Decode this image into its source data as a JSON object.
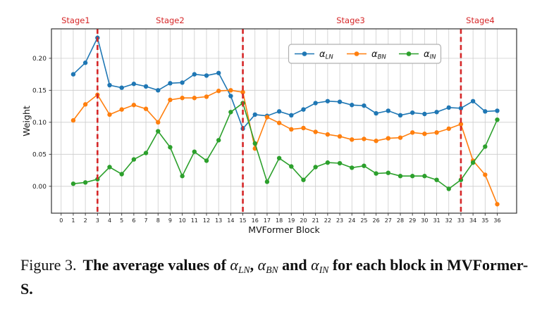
{
  "figure": {
    "caption_segments": [
      {
        "text": "Figure 3.",
        "style": "figlabel"
      },
      {
        "text": "The average values of ",
        "style": "bold"
      },
      {
        "text": "α",
        "style": "math"
      },
      {
        "text": "LN",
        "style": "mathsub"
      },
      {
        "text": ", ",
        "style": "bold"
      },
      {
        "text": "α",
        "style": "math"
      },
      {
        "text": "BN",
        "style": "mathsub"
      },
      {
        "text": " and ",
        "style": "bold"
      },
      {
        "text": "α",
        "style": "math"
      },
      {
        "text": "IN",
        "style": "mathsub"
      },
      {
        "text": " for each block in MVFormer-S.",
        "style": "bold"
      }
    ]
  },
  "chart_data": {
    "type": "line",
    "title": "",
    "xlabel": "MVFormer Block",
    "ylabel": "Weight",
    "grid": true,
    "legend_position": "upper center",
    "xlim": [
      -0.8,
      37.6
    ],
    "ylim": [
      -0.042,
      0.246
    ],
    "x_ticks": [
      0,
      1,
      2,
      3,
      4,
      5,
      6,
      7,
      8,
      9,
      10,
      11,
      12,
      13,
      14,
      15,
      16,
      17,
      18,
      19,
      20,
      21,
      22,
      23,
      24,
      25,
      26,
      27,
      28,
      29,
      30,
      31,
      32,
      33,
      34,
      35,
      36
    ],
    "y_ticks": [
      0.0,
      0.05,
      0.1,
      0.15,
      0.2
    ],
    "y_tick_labels": [
      "0.00",
      "0.05",
      "0.10",
      "0.15",
      "0.20"
    ],
    "x": [
      1,
      2,
      3,
      4,
      5,
      6,
      7,
      8,
      9,
      10,
      11,
      12,
      13,
      14,
      15,
      16,
      17,
      18,
      19,
      20,
      21,
      22,
      23,
      24,
      25,
      26,
      27,
      28,
      29,
      30,
      31,
      32,
      33,
      34,
      35,
      36
    ],
    "series": [
      {
        "name": "α_LN",
        "color": "#1f77b4",
        "values": [
          0.175,
          0.193,
          0.232,
          0.158,
          0.154,
          0.16,
          0.156,
          0.15,
          0.161,
          0.162,
          0.175,
          0.173,
          0.177,
          0.141,
          0.09,
          0.112,
          0.11,
          0.117,
          0.111,
          0.12,
          0.13,
          0.133,
          0.132,
          0.127,
          0.126,
          0.114,
          0.118,
          0.111,
          0.115,
          0.113,
          0.116,
          0.123,
          0.122,
          0.133,
          0.117,
          0.118
        ]
      },
      {
        "name": "α_BN",
        "color": "#ff7f0e",
        "values": [
          0.103,
          0.128,
          0.143,
          0.112,
          0.12,
          0.127,
          0.121,
          0.1,
          0.135,
          0.138,
          0.138,
          0.14,
          0.149,
          0.15,
          0.147,
          0.059,
          0.108,
          0.099,
          0.089,
          0.091,
          0.085,
          0.081,
          0.078,
          0.073,
          0.074,
          0.071,
          0.075,
          0.076,
          0.084,
          0.082,
          0.084,
          0.09,
          0.097,
          0.04,
          0.018,
          -0.028
        ]
      },
      {
        "name": "α_IN",
        "color": "#2ca02c",
        "values": [
          0.004,
          0.006,
          0.011,
          0.03,
          0.019,
          0.042,
          0.052,
          0.086,
          0.061,
          0.016,
          0.054,
          0.04,
          0.072,
          0.116,
          0.13,
          0.067,
          0.007,
          0.044,
          0.031,
          0.01,
          0.03,
          0.037,
          0.036,
          0.029,
          0.032,
          0.02,
          0.021,
          0.016,
          0.016,
          0.016,
          0.01,
          -0.004,
          0.01,
          0.037,
          0.062,
          0.104
        ]
      }
    ],
    "stage_divider_x": [
      3,
      15,
      33
    ],
    "stage_divider_color": "#d62728",
    "stage_labels": [
      {
        "text": "Stage1",
        "x": 1.2
      },
      {
        "text": "Stage2",
        "x": 9.0
      },
      {
        "text": "Stage3",
        "x": 23.9
      },
      {
        "text": "Stage4",
        "x": 34.6
      }
    ],
    "stage_label_color": "#d62728",
    "grid_color": "#cccccc",
    "border_color": "#333333"
  }
}
